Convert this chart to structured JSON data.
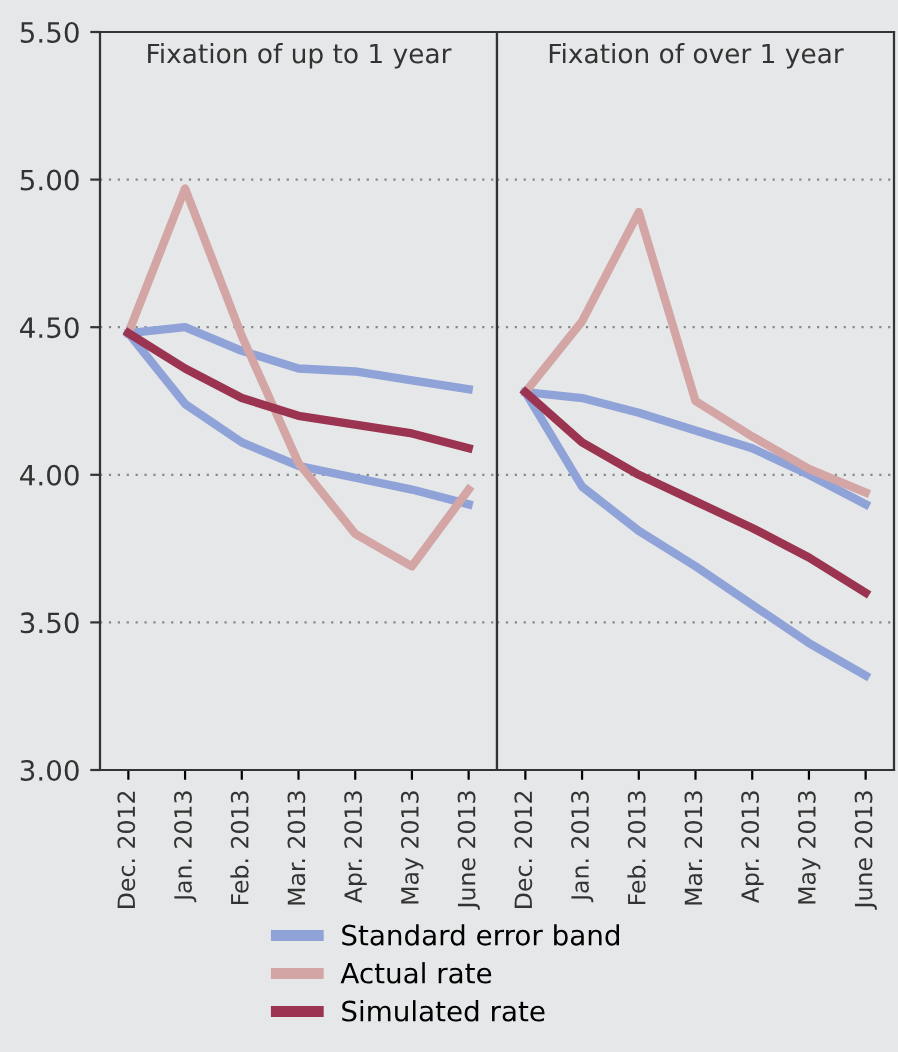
{
  "chart_data": [
    {
      "type": "line",
      "title": "Fixation of up to 1 year",
      "categories": [
        "Dec. 2012",
        "Jan. 2013",
        "Feb. 2013",
        "Mar. 2013",
        "Apr. 2013",
        "May 2013",
        "June 2013"
      ],
      "ylim": [
        3.0,
        5.5
      ],
      "yticks": [
        {
          "value": 3.0,
          "label": "3.00"
        },
        {
          "value": 3.5,
          "label": "3.50"
        },
        {
          "value": 4.0,
          "label": "4.00"
        },
        {
          "value": 4.5,
          "label": "4.50"
        },
        {
          "value": 5.0,
          "label": "5.00"
        },
        {
          "value": 5.5,
          "label": "5.50"
        }
      ],
      "grid": "y",
      "legend": "bottom",
      "marker": "none",
      "line_style": "solid",
      "series": [
        {
          "name": "Standard error band",
          "color": "#8fa3d8",
          "values": [
            4.48,
            4.5,
            4.42,
            4.36,
            4.35,
            4.32,
            4.29
          ]
        },
        {
          "color": "#8fa3d8",
          "values": [
            4.48,
            4.24,
            4.11,
            4.03,
            3.99,
            3.95,
            3.9
          ]
        },
        {
          "name": "Actual rate",
          "color": "#d4a5a5",
          "values": [
            4.48,
            4.97,
            4.47,
            4.04,
            3.8,
            3.69,
            3.95
          ]
        },
        {
          "name": "Simulated rate",
          "color": "#9b3450",
          "values": [
            4.48,
            4.36,
            4.26,
            4.2,
            4.17,
            4.14,
            4.09
          ]
        }
      ]
    },
    {
      "type": "line",
      "title": "Fixation of over 1 year",
      "categories": [
        "Dec. 2012",
        "Jan. 2013",
        "Feb. 2013",
        "Mar. 2013",
        "Apr. 2013",
        "May 2013",
        "June 2013"
      ],
      "ylim": [
        3.0,
        5.5
      ],
      "yticks": [
        3.0,
        3.5,
        4.0,
        4.5,
        5.0,
        5.5
      ],
      "grid": "y",
      "tick_labels": "x",
      "marker": "none",
      "line_style": "solid",
      "series": [
        {
          "name": "Standard error band",
          "color": "#8fa3d8",
          "values": [
            4.28,
            4.26,
            4.21,
            4.15,
            4.09,
            4.0,
            3.9
          ]
        },
        {
          "color": "#8fa3d8",
          "values": [
            4.28,
            3.96,
            3.81,
            3.69,
            3.56,
            3.43,
            3.32
          ]
        },
        {
          "name": "Actual rate",
          "color": "#d4a5a5",
          "values": [
            4.28,
            4.52,
            4.89,
            4.25,
            4.13,
            4.02,
            3.94
          ]
        },
        {
          "name": "Simulated rate",
          "color": "#9b3450",
          "values": [
            4.28,
            4.11,
            4.0,
            3.91,
            3.82,
            3.72,
            3.6
          ]
        }
      ]
    }
  ]
}
